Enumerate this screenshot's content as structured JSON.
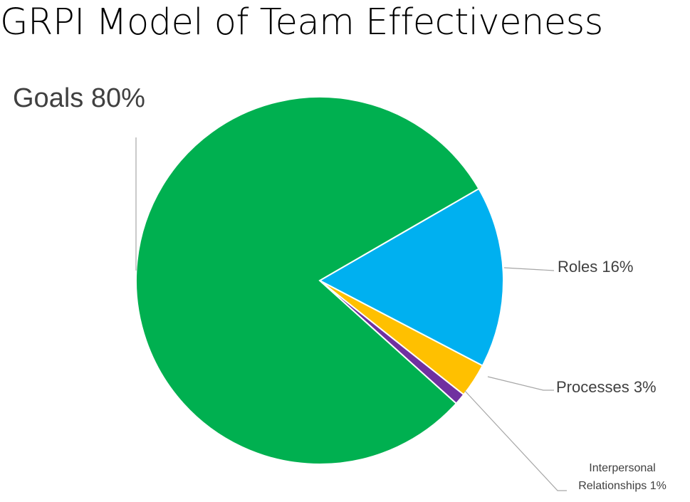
{
  "title": "GRPI Model of Team Effectiveness",
  "chart_data": {
    "type": "pie",
    "slices": [
      {
        "label": "Goals",
        "value": 80,
        "display": "Goals  80%",
        "color": "#00B050"
      },
      {
        "label": "Roles",
        "value": 16,
        "display": "Roles 16%",
        "color": "#00B0F0"
      },
      {
        "label": "Processes",
        "value": 3,
        "display": "Processes 3%",
        "color": "#FFC000"
      },
      {
        "label": "Interpersonal Relationships",
        "value": 1,
        "display_lines": [
          "Interpersonal",
          "Relationships 1%"
        ],
        "color": "#7030A0"
      }
    ]
  }
}
